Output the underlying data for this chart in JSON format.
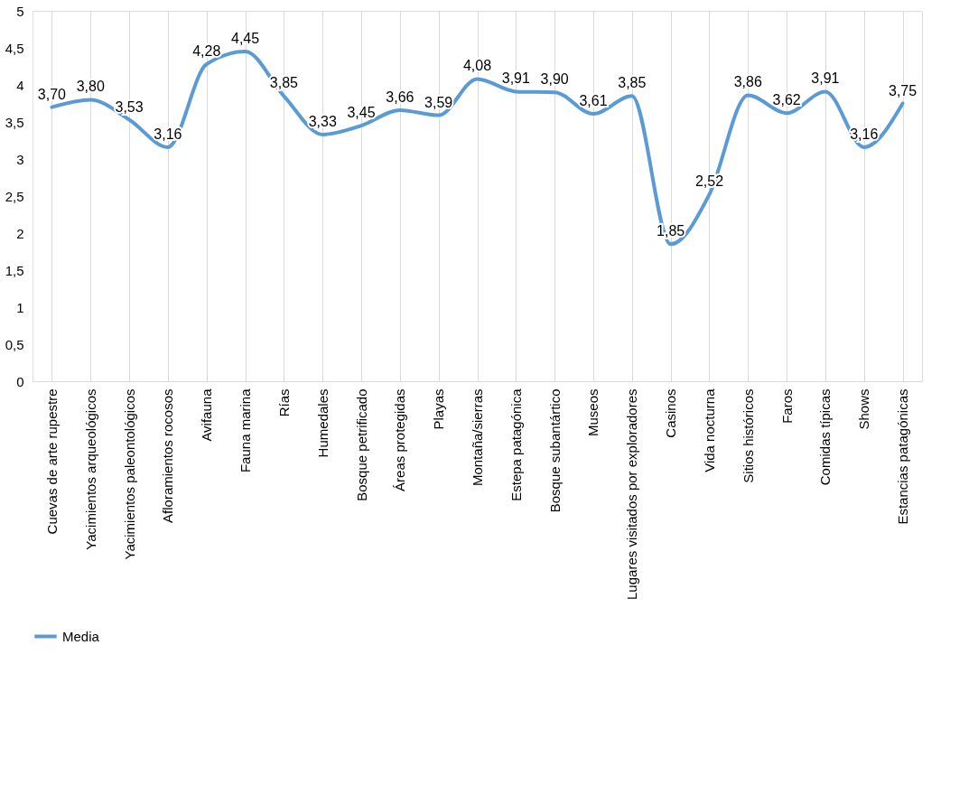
{
  "chart_data": {
    "type": "line",
    "categories": [
      "Cuevas de arte rupestre",
      "Yacimientos arqueológicos",
      "Yacimientos paleontológicos",
      "Afloramientos rocosos",
      "Avifauna",
      "Fauna marina",
      "Rías",
      "Humedales",
      "Bosque petrificado",
      "Áreas protegidas",
      "Playas",
      "Montaña/sierras",
      "Estepa patagónica",
      "Bosque subantártico",
      "Museos",
      "Lugares visitados  por  exploradores",
      "Casinos",
      "Vida nocturna",
      "Sitios históricos",
      "Faros",
      "Comidas típicas",
      "Shows",
      "Estancias patagónicas"
    ],
    "series": [
      {
        "name": "Media",
        "color": "#5b9bd5",
        "values": [
          3.7,
          3.8,
          3.53,
          3.16,
          4.28,
          4.45,
          3.85,
          3.33,
          3.45,
          3.66,
          3.59,
          4.08,
          3.91,
          3.9,
          3.61,
          3.85,
          1.85,
          2.52,
          3.86,
          3.62,
          3.91,
          3.16,
          3.75
        ],
        "value_labels": [
          "3,70",
          "3,80",
          "3,53",
          "3,16",
          "4,28",
          "4,45",
          "3,85",
          "3,33",
          "3,45",
          "3,66",
          "3,59",
          "4,08",
          "3,91",
          "3,90",
          "3,61",
          "3,85",
          "1,85",
          "2,52",
          "3,86",
          "3,62",
          "3,91",
          "3,16",
          "3,75"
        ]
      }
    ],
    "ylim": [
      0,
      5
    ],
    "yticks": [
      0,
      {
        "value": 0.5,
        "label": "0,5"
      },
      1,
      {
        "value": 1.5,
        "label": "1,5"
      },
      2,
      {
        "value": 2.5,
        "label": "2,5"
      },
      3,
      {
        "value": 3.5,
        "label": "3,5"
      },
      4,
      {
        "value": 4.5,
        "label": "4,5"
      },
      5
    ],
    "grid": "x",
    "legend": "bottom",
    "marker": "none",
    "line_style": "solid"
  }
}
